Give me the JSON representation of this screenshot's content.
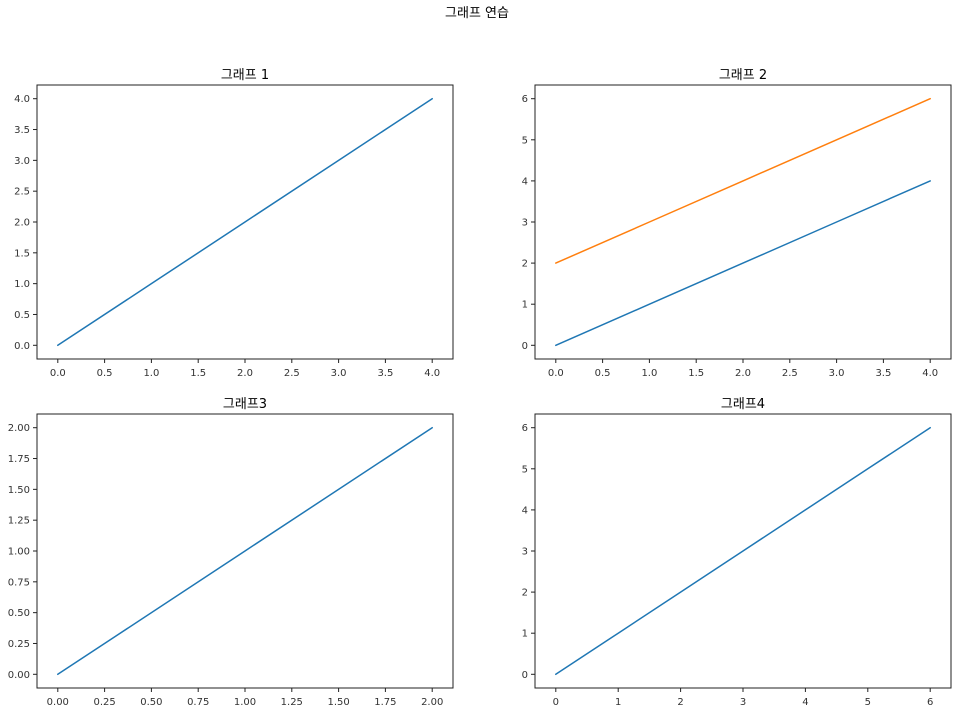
{
  "figure": {
    "suptitle": "그래프 연습"
  },
  "chart_data": [
    {
      "type": "line",
      "title": "그래프 1",
      "xlabel": "",
      "ylabel": "",
      "xlim": [
        0,
        4
      ],
      "ylim": [
        0,
        4
      ],
      "xticks": [
        "0.0",
        "0.5",
        "1.0",
        "1.5",
        "2.0",
        "2.5",
        "3.0",
        "3.5",
        "4.0"
      ],
      "yticks": [
        "0.0",
        "0.5",
        "1.0",
        "1.5",
        "2.0",
        "2.5",
        "3.0",
        "3.5",
        "4.0"
      ],
      "series": [
        {
          "x": [
            0,
            1,
            2,
            3,
            4
          ],
          "y": [
            0,
            1,
            2,
            3,
            4
          ],
          "color": "#1f77b4"
        }
      ]
    },
    {
      "type": "line",
      "title": "그래프 2",
      "xlabel": "",
      "ylabel": "",
      "xlim": [
        0,
        4
      ],
      "ylim": [
        0,
        6
      ],
      "xticks": [
        "0.0",
        "0.5",
        "1.0",
        "1.5",
        "2.0",
        "2.5",
        "3.0",
        "3.5",
        "4.0"
      ],
      "yticks": [
        "0",
        "1",
        "2",
        "3",
        "4",
        "5",
        "6"
      ],
      "series": [
        {
          "x": [
            0,
            1,
            2,
            3,
            4
          ],
          "y": [
            0,
            1,
            2,
            3,
            4
          ],
          "color": "#1f77b4"
        },
        {
          "x": [
            0,
            1,
            2,
            3,
            4
          ],
          "y": [
            2,
            3,
            4,
            5,
            6
          ],
          "color": "#ff7f0e"
        }
      ]
    },
    {
      "type": "line",
      "title": "그래프3",
      "xlabel": "",
      "ylabel": "",
      "xlim": [
        0,
        2
      ],
      "ylim": [
        0,
        2
      ],
      "xticks": [
        "0.00",
        "0.25",
        "0.50",
        "0.75",
        "1.00",
        "1.25",
        "1.50",
        "1.75",
        "2.00"
      ],
      "yticks": [
        "0.00",
        "0.25",
        "0.50",
        "0.75",
        "1.00",
        "1.25",
        "1.50",
        "1.75",
        "2.00"
      ],
      "series": [
        {
          "x": [
            0,
            1,
            2
          ],
          "y": [
            0,
            1,
            2
          ],
          "color": "#1f77b4"
        }
      ]
    },
    {
      "type": "line",
      "title": "그래프4",
      "xlabel": "",
      "ylabel": "",
      "xlim": [
        0,
        6
      ],
      "ylim": [
        0,
        6
      ],
      "xticks": [
        "0",
        "1",
        "2",
        "3",
        "4",
        "5",
        "6"
      ],
      "yticks": [
        "0",
        "1",
        "2",
        "3",
        "4",
        "5",
        "6"
      ],
      "series": [
        {
          "x": [
            0,
            1,
            2,
            3,
            4,
            5,
            6
          ],
          "y": [
            0,
            1,
            2,
            3,
            4,
            5,
            6
          ],
          "color": "#1f77b4"
        }
      ]
    }
  ]
}
